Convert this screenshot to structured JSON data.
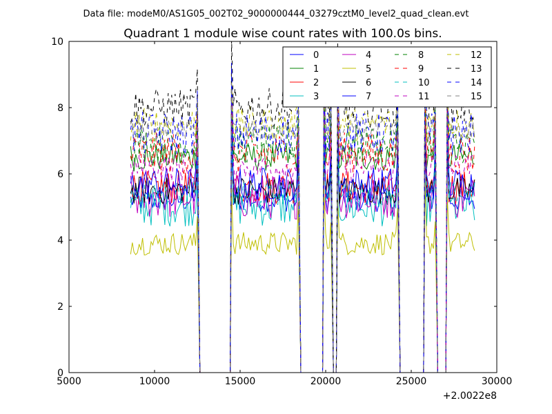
{
  "chart_data": {
    "type": "line",
    "suptitle": "Data file: modeM0/AS1G05_002T02_9000000444_03279cztM0_level2_quad_clean.evt",
    "title": "Quadrant 1 module wise count rates with 100.0s bins.",
    "xlabel": "",
    "ylabel": "",
    "x_offset_label": "+2.0022e8",
    "xlim": [
      5000,
      30000
    ],
    "ylim": [
      0,
      10
    ],
    "xticks": [
      "5000",
      "10000",
      "15000",
      "20000",
      "25000",
      "30000"
    ],
    "yticks": [
      "0",
      "2",
      "4",
      "6",
      "8",
      "10"
    ],
    "grid": false,
    "legend_position": "top-right",
    "bin_size_s": 100,
    "segments": [
      [
        8600,
        12500
      ],
      [
        14500,
        18400
      ],
      [
        19900,
        20300
      ],
      [
        20700,
        24200
      ],
      [
        25800,
        26400
      ],
      [
        27100,
        28700
      ]
    ],
    "series": [
      {
        "name": "0",
        "color": "#0000ff",
        "style": "solid",
        "mean": 5.2
      },
      {
        "name": "1",
        "color": "#008000",
        "style": "solid",
        "mean": 6.5
      },
      {
        "name": "2",
        "color": "#ff0000",
        "style": "solid",
        "mean": 5.6
      },
      {
        "name": "3",
        "color": "#00bfbf",
        "style": "solid",
        "mean": 5.0
      },
      {
        "name": "4",
        "color": "#bf00bf",
        "style": "solid",
        "mean": 5.3
      },
      {
        "name": "5",
        "color": "#bfbf00",
        "style": "solid",
        "mean": 3.9
      },
      {
        "name": "6",
        "color": "#000000",
        "style": "solid",
        "mean": 5.5
      },
      {
        "name": "7",
        "color": "#0000ff",
        "style": "solid",
        "mean": 5.7
      },
      {
        "name": "8",
        "color": "#008000",
        "style": "dashed",
        "mean": 6.9
      },
      {
        "name": "9",
        "color": "#ff0000",
        "style": "dashed",
        "mean": 6.6
      },
      {
        "name": "10",
        "color": "#00bfbf",
        "style": "dashed",
        "mean": 5.4
      },
      {
        "name": "11",
        "color": "#bf00bf",
        "style": "dashed",
        "mean": 6.2
      },
      {
        "name": "12",
        "color": "#bfbf00",
        "style": "dashed",
        "mean": 7.5
      },
      {
        "name": "13",
        "color": "#000000",
        "style": "dashed",
        "mean": 8.0
      },
      {
        "name": "14",
        "color": "#0000ff",
        "style": "dashed",
        "mean": 7.2
      },
      {
        "name": "15",
        "color": "#808080",
        "style": "dashed",
        "mean": 7.3
      }
    ]
  }
}
